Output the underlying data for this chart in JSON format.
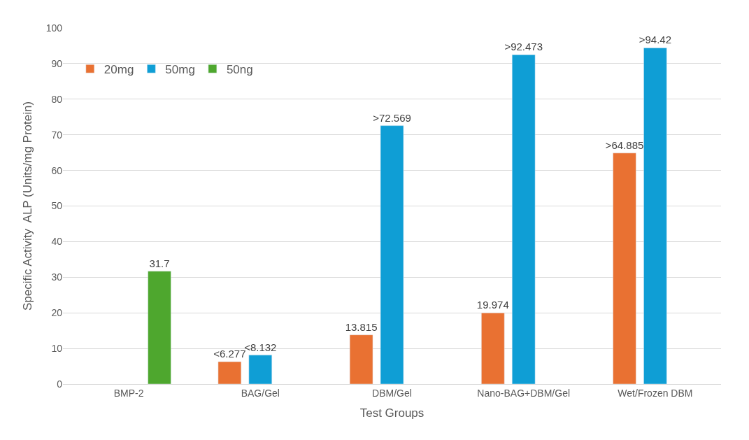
{
  "chart_data": {
    "type": "bar",
    "xlabel": "Test Groups",
    "ylabel": "Specific Activity  ALP (Units/mg Protein)",
    "categories": [
      "BMP-2",
      "BAG/Gel",
      "DBM/Gel",
      "Nano-BAG+DBM/Gel",
      "Wet/Frozen DBM"
    ],
    "series": [
      {
        "name": "20mg",
        "color": "#e97132",
        "values": [
          null,
          6.277,
          13.815,
          19.974,
          64.885
        ],
        "value_labels": [
          null,
          "<6.277",
          "13.815",
          "19.974",
          ">64.885"
        ]
      },
      {
        "name": "50mg",
        "color": "#0f9ed5",
        "values": [
          null,
          8.132,
          72.569,
          92.473,
          94.42
        ],
        "value_labels": [
          null,
          "<8.132",
          ">72.569",
          ">92.473",
          ">94.42"
        ]
      },
      {
        "name": "50ng",
        "color": "#4ea72e",
        "values": [
          31.7,
          null,
          null,
          null,
          null
        ],
        "value_labels": [
          "31.7",
          null,
          null,
          null,
          null
        ]
      }
    ],
    "ylim": [
      0,
      100
    ],
    "yticks": [
      0,
      10,
      20,
      30,
      40,
      50,
      60,
      70,
      80,
      90,
      100
    ],
    "grid": "y",
    "legend": "top left"
  }
}
